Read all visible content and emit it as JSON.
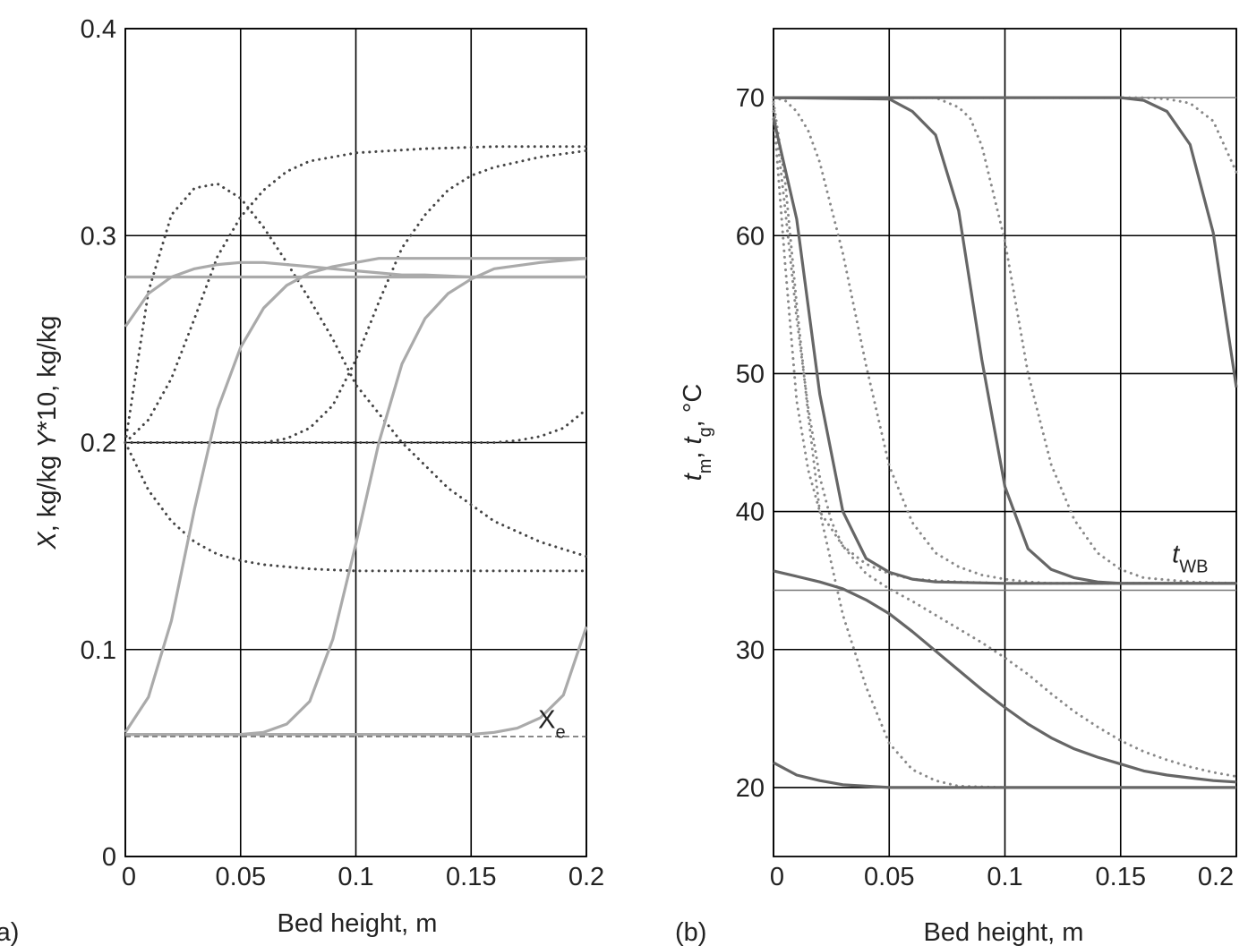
{
  "chart_data": [
    {
      "type": "line",
      "panel_label": "(a)",
      "xlabel": "Bed height, m",
      "ylabel_parts": [
        {
          "text": "X",
          "italic": true
        },
        {
          "text": ", kg/kg   ",
          "italic": false
        },
        {
          "text": "Y",
          "italic": true
        },
        {
          "text": "*10, kg/kg",
          "italic": false
        }
      ],
      "xlim": [
        0,
        0.2
      ],
      "ylim": [
        0,
        0.4
      ],
      "xticks": [
        0,
        0.05,
        0.1,
        0.15,
        0.2
      ],
      "xtick_labels": [
        "0",
        "0.05",
        "0.1",
        "0.15",
        "0.2"
      ],
      "yticks": [
        0,
        0.1,
        0.2,
        0.3,
        0.4
      ],
      "ytick_labels": [
        "0",
        "0.1",
        "0.2",
        "0.3",
        "0.4"
      ],
      "grid": true,
      "colors": {
        "solid": "#aaaaaa",
        "dotted": "#444444",
        "ref": "#555555"
      },
      "annotations": [
        {
          "text": "X",
          "sub": "e",
          "x": 0.185,
          "y": 0.062
        }
      ],
      "series": [
        {
          "style": "solid",
          "x": [
            0,
            0.01,
            0.02,
            0.03,
            0.04,
            0.05,
            0.06,
            0.07,
            0.08,
            0.09,
            0.1,
            0.11,
            0.12,
            0.13,
            0.15,
            0.2
          ],
          "y": [
            0.256,
            0.272,
            0.28,
            0.284,
            0.286,
            0.287,
            0.287,
            0.286,
            0.285,
            0.284,
            0.283,
            0.282,
            0.281,
            0.281,
            0.28,
            0.28
          ]
        },
        {
          "style": "solid",
          "x": [
            0,
            0.01,
            0.02,
            0.03,
            0.04,
            0.05,
            0.06,
            0.07,
            0.08,
            0.09,
            0.1,
            0.11,
            0.13,
            0.15,
            0.2
          ],
          "y": [
            0.06,
            0.077,
            0.114,
            0.168,
            0.216,
            0.246,
            0.265,
            0.276,
            0.282,
            0.285,
            0.287,
            0.289,
            0.289,
            0.289,
            0.289
          ]
        },
        {
          "style": "solid",
          "x": [
            0,
            0.05,
            0.06,
            0.07,
            0.08,
            0.09,
            0.1,
            0.11,
            0.12,
            0.13,
            0.14,
            0.15,
            0.16,
            0.18,
            0.2
          ],
          "y": [
            0.059,
            0.059,
            0.06,
            0.064,
            0.075,
            0.105,
            0.151,
            0.2,
            0.238,
            0.26,
            0.272,
            0.279,
            0.284,
            0.287,
            0.289
          ]
        },
        {
          "style": "solid",
          "x": [
            0,
            0.15,
            0.16,
            0.17,
            0.18,
            0.19,
            0.2
          ],
          "y": [
            0.059,
            0.059,
            0.06,
            0.062,
            0.067,
            0.078,
            0.111
          ]
        },
        {
          "style": "solid",
          "x": [
            0,
            0.2
          ],
          "y": [
            0.28,
            0.28
          ]
        },
        {
          "style": "dotted",
          "x": [
            0,
            0.01,
            0.02,
            0.03,
            0.04,
            0.05,
            0.06,
            0.07,
            0.08,
            0.09,
            0.1,
            0.12,
            0.14,
            0.16,
            0.18,
            0.2
          ],
          "y": [
            0.2,
            0.273,
            0.31,
            0.323,
            0.325,
            0.318,
            0.304,
            0.287,
            0.269,
            0.25,
            0.228,
            0.2,
            0.178,
            0.162,
            0.152,
            0.145
          ]
        },
        {
          "style": "dotted",
          "x": [
            0,
            0.01,
            0.02,
            0.03,
            0.04,
            0.05,
            0.06,
            0.07,
            0.08,
            0.1,
            0.13,
            0.16,
            0.2
          ],
          "y": [
            0.2,
            0.211,
            0.231,
            0.26,
            0.29,
            0.309,
            0.322,
            0.331,
            0.336,
            0.34,
            0.342,
            0.343,
            0.343
          ]
        },
        {
          "style": "dotted",
          "x": [
            0,
            0.06,
            0.07,
            0.08,
            0.09,
            0.1,
            0.11,
            0.12,
            0.13,
            0.14,
            0.15,
            0.16,
            0.18,
            0.2
          ],
          "y": [
            0.2,
            0.2,
            0.202,
            0.207,
            0.218,
            0.24,
            0.268,
            0.294,
            0.31,
            0.322,
            0.329,
            0.333,
            0.338,
            0.341
          ]
        },
        {
          "style": "dotted",
          "x": [
            0,
            0.16,
            0.17,
            0.18,
            0.19,
            0.2
          ],
          "y": [
            0.2,
            0.2,
            0.201,
            0.203,
            0.207,
            0.216
          ]
        },
        {
          "style": "dotted",
          "x": [
            0,
            0.01,
            0.02,
            0.03,
            0.04,
            0.05,
            0.06,
            0.07,
            0.08,
            0.1,
            0.13,
            0.16,
            0.2
          ],
          "y": [
            0.2,
            0.177,
            0.162,
            0.152,
            0.146,
            0.143,
            0.141,
            0.14,
            0.139,
            0.138,
            0.138,
            0.138,
            0.138
          ]
        },
        {
          "style": "ref",
          "x": [
            0,
            0.2
          ],
          "y": [
            0.058,
            0.058
          ]
        }
      ]
    },
    {
      "type": "line",
      "panel_label": "(b)",
      "xlabel": "Bed height, m",
      "ylabel_parts": [
        {
          "text": "t",
          "italic": true
        },
        {
          "text": "m",
          "italic": false,
          "sub": true
        },
        {
          "text": ", ",
          "italic": false
        },
        {
          "text": "t",
          "italic": true
        },
        {
          "text": "g",
          "italic": false,
          "sub": true
        },
        {
          "text": ", °C",
          "italic": false
        }
      ],
      "xlim": [
        0,
        0.2
      ],
      "ylim": [
        15,
        75
      ],
      "xticks": [
        0,
        0.05,
        0.1,
        0.15,
        0.2
      ],
      "xtick_labels": [
        "0",
        "0.05",
        "0.1",
        "0.15",
        "0.2"
      ],
      "yticks": [
        20,
        30,
        40,
        50,
        60,
        70
      ],
      "ytick_labels": [
        "20",
        "30",
        "40",
        "50",
        "60",
        "70"
      ],
      "grid": true,
      "colors": {
        "solid": "#666666",
        "dotted": "#888888",
        "ref": "#aaaaaa"
      },
      "annotations": [
        {
          "text": "t",
          "sub": "WB",
          "x": 0.18,
          "y": 36.3
        }
      ],
      "series": [
        {
          "style": "solid",
          "x": [
            0,
            0.01,
            0.02,
            0.03,
            0.04,
            0.05,
            0.06,
            0.07,
            0.1,
            0.15,
            0.2
          ],
          "y": [
            68.5,
            61.2,
            48.5,
            40.0,
            36.6,
            35.6,
            35.1,
            34.9,
            34.8,
            34.8,
            34.8
          ]
        },
        {
          "style": "solid",
          "x": [
            0,
            0.05,
            0.06,
            0.07,
            0.08,
            0.09,
            0.1,
            0.11,
            0.12,
            0.13,
            0.14,
            0.15,
            0.2
          ],
          "y": [
            70,
            69.9,
            69.0,
            67.3,
            61.8,
            51.0,
            41.8,
            37.3,
            35.8,
            35.2,
            34.9,
            34.8,
            34.8
          ]
        },
        {
          "style": "solid",
          "x": [
            0,
            0.15,
            0.16,
            0.17,
            0.18,
            0.19,
            0.2
          ],
          "y": [
            70,
            70,
            69.8,
            69.0,
            66.6,
            60.2,
            49.0
          ]
        },
        {
          "style": "solid",
          "x": [
            0,
            0.01,
            0.02,
            0.03,
            0.04,
            0.05,
            0.06,
            0.07,
            0.08,
            0.09,
            0.1,
            0.11,
            0.12,
            0.13,
            0.14,
            0.15,
            0.16,
            0.17,
            0.18,
            0.19,
            0.2
          ],
          "y": [
            35.7,
            35.3,
            34.9,
            34.4,
            33.6,
            32.6,
            31.3,
            29.9,
            28.5,
            27.1,
            25.8,
            24.6,
            23.6,
            22.8,
            22.2,
            21.7,
            21.2,
            20.9,
            20.7,
            20.5,
            20.4
          ]
        },
        {
          "style": "solid",
          "x": [
            0,
            0.01,
            0.02,
            0.03,
            0.04,
            0.05,
            0.1,
            0.15,
            0.2
          ],
          "y": [
            21.8,
            20.9,
            20.5,
            20.2,
            20.1,
            20.0,
            20.0,
            20.0,
            20.0
          ]
        },
        {
          "style": "dotted",
          "x": [
            0,
            0.005,
            0.01,
            0.015,
            0.02,
            0.03,
            0.04,
            0.05,
            0.06,
            0.08,
            0.1,
            0.15,
            0.2
          ],
          "y": [
            69,
            58,
            48,
            43,
            40,
            37.5,
            36.2,
            35.5,
            35.1,
            34.9,
            34.8,
            34.8,
            34.8
          ]
        },
        {
          "style": "dotted",
          "x": [
            0,
            0.005,
            0.01,
            0.015,
            0.02,
            0.025,
            0.03,
            0.04,
            0.05,
            0.06,
            0.07,
            0.08,
            0.09,
            0.1,
            0.11,
            0.12,
            0.13,
            0.14,
            0.15,
            0.16,
            0.17,
            0.18,
            0.19,
            0.2
          ],
          "y": [
            69.5,
            62,
            54,
            47.5,
            42.5,
            39.3,
            37.5,
            35.5,
            34.4,
            33.5,
            32.5,
            31.5,
            30.5,
            29.4,
            28.2,
            26.8,
            25.5,
            24.4,
            23.4,
            22.6,
            22.0,
            21.5,
            21.1,
            20.8
          ]
        },
        {
          "style": "dotted",
          "x": [
            0,
            0.005,
            0.01,
            0.015,
            0.02,
            0.03,
            0.04,
            0.05,
            0.06,
            0.07,
            0.08,
            0.1
          ],
          "y": [
            69.7,
            64,
            55,
            47,
            40,
            32.5,
            27.3,
            23.2,
            21.3,
            20.5,
            20.1,
            20.0
          ]
        },
        {
          "style": "dotted",
          "x": [
            0,
            0.005,
            0.01,
            0.015,
            0.02,
            0.03,
            0.04,
            0.05,
            0.06,
            0.07,
            0.08,
            0.09,
            0.1,
            0.11,
            0.12,
            0.13,
            0.15,
            0.2
          ],
          "y": [
            70,
            69.8,
            69.0,
            67.6,
            65.3,
            58.7,
            50.6,
            43.3,
            39.2,
            37.0,
            36.0,
            35.4,
            35.1,
            34.9,
            34.8,
            34.8,
            34.8,
            34.8
          ]
        },
        {
          "style": "dotted",
          "x": [
            0,
            0.07,
            0.08,
            0.085,
            0.09,
            0.1,
            0.11,
            0.12,
            0.13,
            0.14,
            0.15,
            0.16,
            0.18,
            0.2
          ],
          "y": [
            70,
            70,
            69.3,
            68.5,
            66.5,
            59.6,
            50.0,
            43.4,
            39.4,
            37.0,
            35.8,
            35.2,
            34.9,
            34.8
          ]
        },
        {
          "style": "dotted",
          "x": [
            0,
            0.15,
            0.16,
            0.17,
            0.18,
            0.19,
            0.2
          ],
          "y": [
            70,
            70,
            70,
            69.9,
            69.6,
            68.3,
            64.6
          ]
        },
        {
          "style": "ref",
          "x": [
            0,
            0.2
          ],
          "y": [
            70,
            70
          ]
        },
        {
          "style": "ref",
          "x": [
            0,
            0.2
          ],
          "y": [
            34.3,
            34.3
          ]
        }
      ]
    }
  ]
}
